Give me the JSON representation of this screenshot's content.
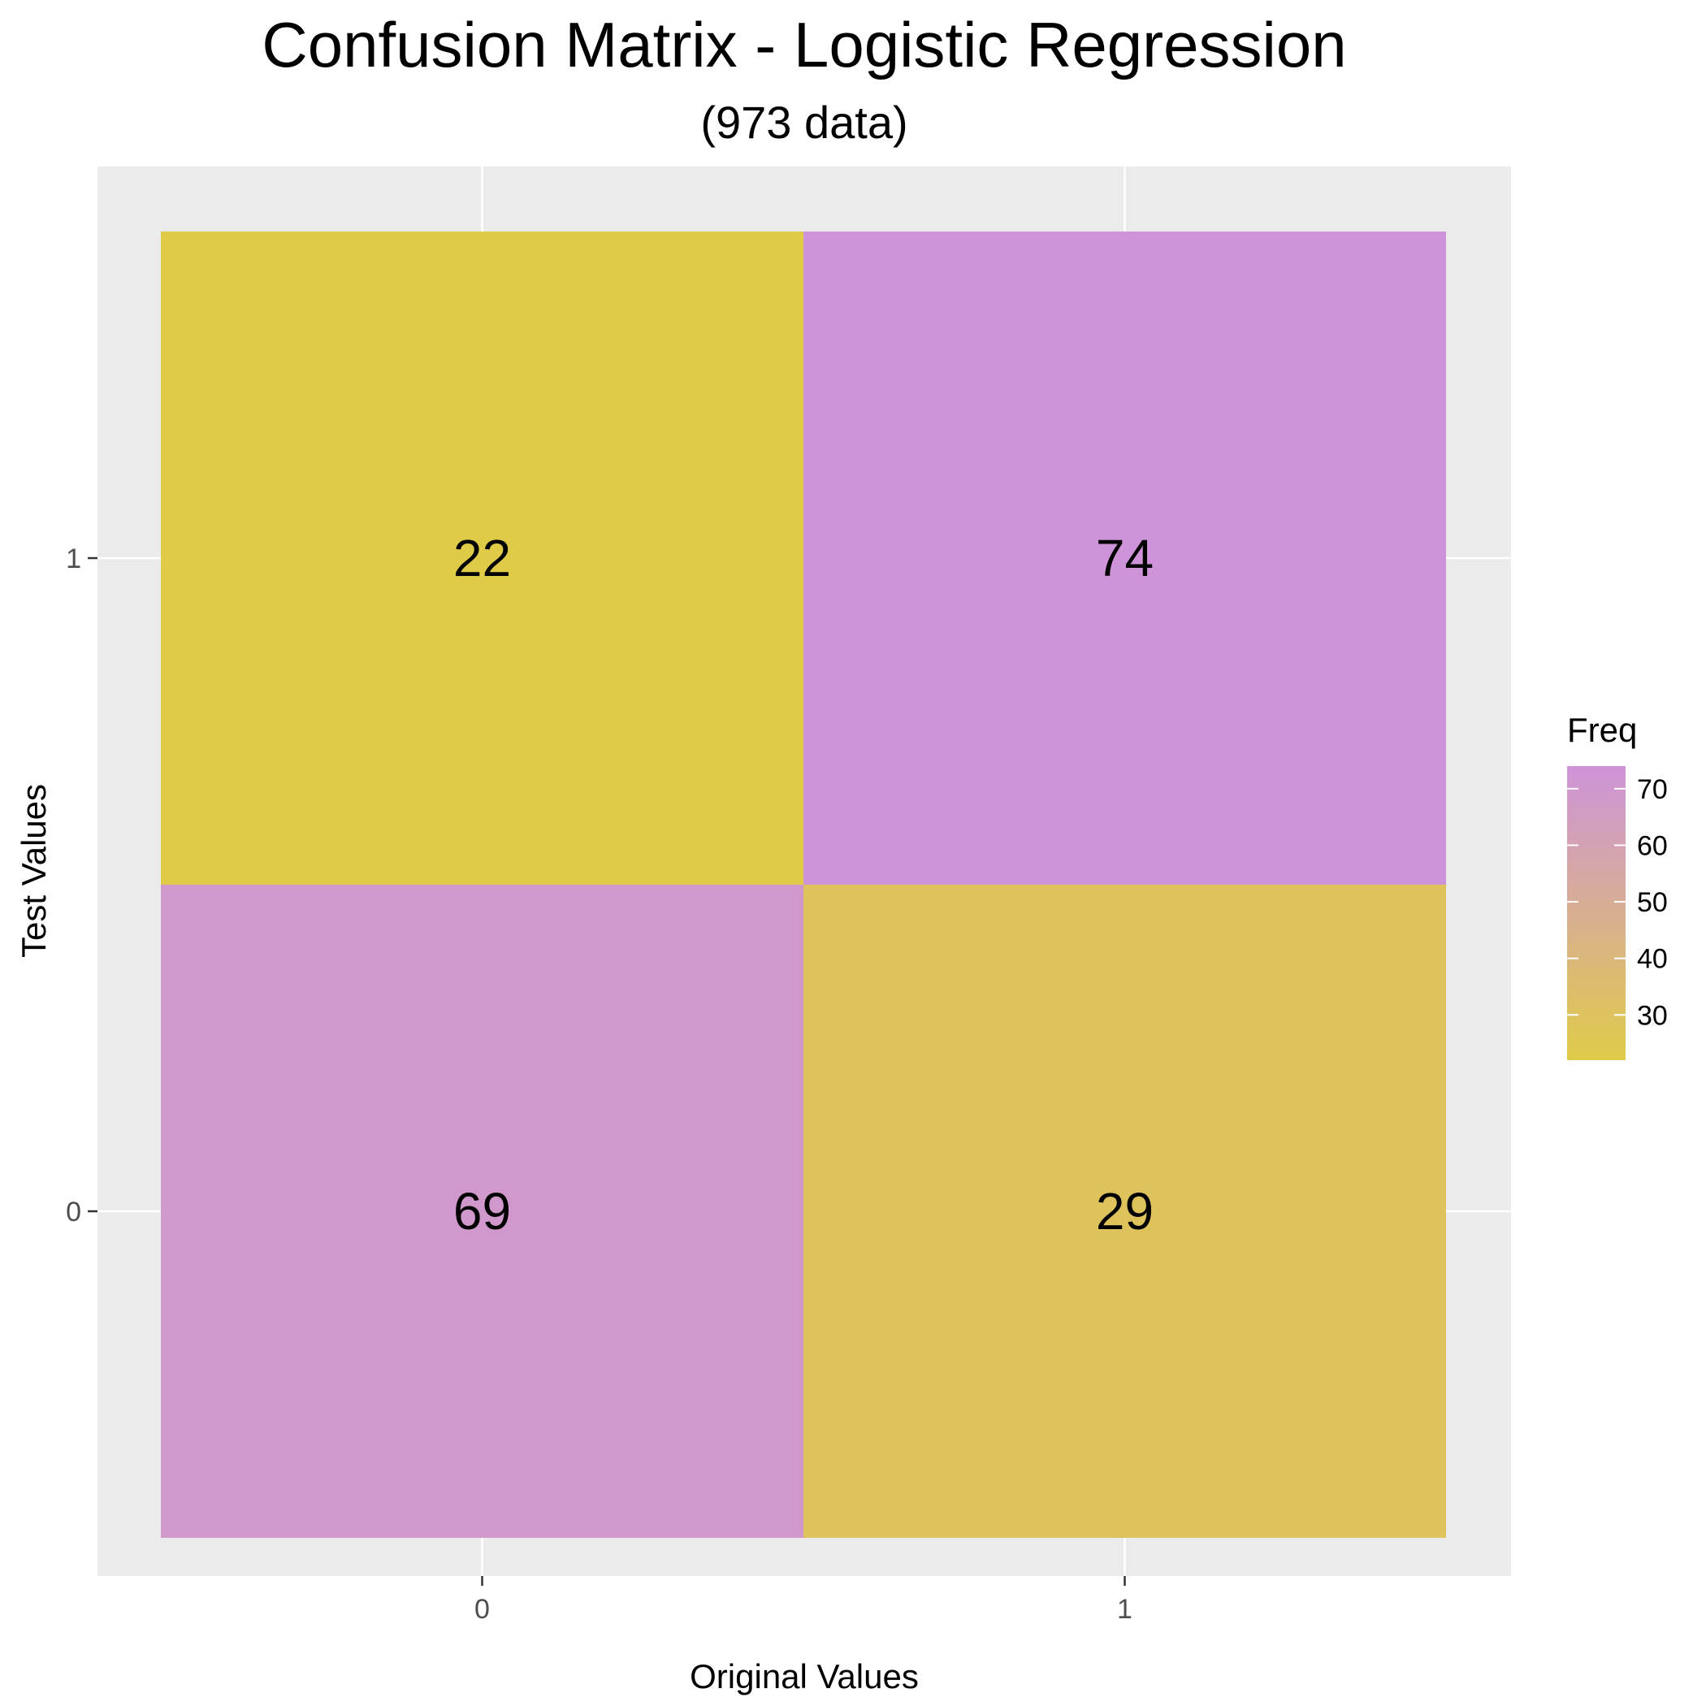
{
  "chart_data": {
    "type": "heatmap",
    "title": "Confusion Matrix - Logistic Regression",
    "subtitle": "(973 data)",
    "xlabel": "Original Values",
    "ylabel": "Test Values",
    "x_categories": [
      "0",
      "1"
    ],
    "y_categories": [
      "0",
      "1"
    ],
    "cells": [
      {
        "x": "0",
        "y": "1",
        "value": 22
      },
      {
        "x": "1",
        "y": "1",
        "value": 74
      },
      {
        "x": "0",
        "y": "0",
        "value": 69
      },
      {
        "x": "1",
        "y": "0",
        "value": 29
      }
    ],
    "legend": {
      "title": "Freq",
      "position": "right",
      "range": [
        22,
        74
      ],
      "ticks": [
        30,
        40,
        50,
        60,
        70
      ],
      "low_color": "#E0CB49",
      "high_color": "#CF93D9"
    },
    "panel_background": "#EBEBEB",
    "grid": true
  }
}
